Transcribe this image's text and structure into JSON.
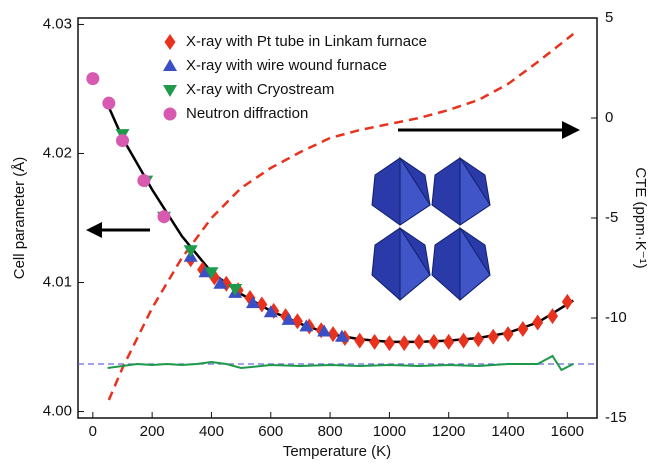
{
  "chart_data": {
    "type": "scatter",
    "xlabel": "Temperature (K)",
    "ylabel": "Cell parameter (Å)",
    "y2label": "CTE (ppm·K⁻¹)",
    "xlim": [
      -50,
      1700
    ],
    "xticks": [
      0,
      200,
      400,
      600,
      800,
      1000,
      1200,
      1400,
      1600
    ],
    "ylim": [
      3.9995,
      4.0305
    ],
    "yticks": [
      {
        "value": 4.0,
        "label": "4.00"
      },
      {
        "value": 4.01,
        "label": "4.01"
      },
      {
        "value": 4.02,
        "label": "4.02"
      },
      {
        "value": 4.03,
        "label": "4.03"
      }
    ],
    "y2lim": [
      -15,
      5
    ],
    "y2ticks": [
      5,
      0,
      -5,
      -10,
      -15
    ],
    "series": [
      {
        "name": "X-ray with Pt tube in Linkam furnace",
        "color": "#e8321e",
        "marker": "diamond",
        "x": [
          330,
          370,
          410,
          450,
          490,
          530,
          570,
          610,
          650,
          690,
          730,
          770,
          810,
          850,
          900,
          950,
          1000,
          1050,
          1100,
          1150,
          1200,
          1250,
          1300,
          1350,
          1400,
          1450,
          1500,
          1550,
          1600
        ],
        "values": [
          4.0118,
          4.011,
          4.0104,
          4.0099,
          4.0094,
          4.0088,
          4.0083,
          4.0078,
          4.0074,
          4.007,
          4.0066,
          4.0063,
          4.006,
          4.0057,
          4.0055,
          4.0054,
          4.0053,
          4.0053,
          4.0054,
          4.0054,
          4.0054,
          4.0055,
          4.0056,
          4.0058,
          4.006,
          4.0064,
          4.0069,
          4.0074,
          4.0085
        ]
      },
      {
        "name": "X-ray with wire wound furnace",
        "color": "#3a4fc4",
        "marker": "triangle-up",
        "x": [
          330,
          380,
          430,
          480,
          540,
          600,
          660,
          720,
          780,
          840
        ],
        "values": [
          4.012,
          4.0108,
          4.0099,
          4.0092,
          4.0084,
          4.0077,
          4.0071,
          4.0066,
          4.0062,
          4.0058
        ]
      },
      {
        "name": "X-ray with Cryostream",
        "color": "#1e9a4a",
        "marker": "triangle-down",
        "x": [
          100,
          180,
          240,
          330,
          400,
          480
        ],
        "values": [
          4.0215,
          4.0179,
          4.0151,
          4.0125,
          4.0108,
          4.0095
        ]
      },
      {
        "name": "Neutron diffraction",
        "color": "#d85ab0",
        "marker": "circle",
        "x": [
          0,
          54,
          100,
          172,
          240
        ],
        "values": [
          4.0258,
          4.0239,
          4.021,
          4.0179,
          4.0151
        ]
      }
    ],
    "fit": {
      "color": "#000000",
      "x": [
        50,
        100,
        200,
        300,
        400,
        500,
        600,
        700,
        800,
        900,
        1000,
        1100,
        1200,
        1300,
        1400,
        1500,
        1620
      ],
      "values": [
        4.0238,
        4.0212,
        4.0172,
        4.0136,
        4.0108,
        4.0091,
        4.0078,
        4.0068,
        4.006,
        4.0056,
        4.0054,
        4.0054,
        4.0055,
        4.0057,
        4.0061,
        4.0069,
        4.0086
      ]
    },
    "cte": {
      "color": "#e8321e",
      "axis": "y2",
      "x": [
        54,
        100,
        200,
        300,
        400,
        500,
        600,
        700,
        800,
        900,
        1000,
        1100,
        1200,
        1300,
        1400,
        1500,
        1620
      ],
      "values": [
        -14.1,
        -12.5,
        -9.5,
        -7,
        -5,
        -3.5,
        -2.5,
        -1.7,
        -1,
        -0.6,
        -0.3,
        0,
        0.4,
        0.9,
        1.7,
        2.8,
        4.2
      ]
    },
    "residual": {
      "color": "#1e9a4a",
      "axis": "y2",
      "x": [
        50,
        100,
        150,
        200,
        250,
        300,
        350,
        400,
        450,
        500,
        600,
        700,
        800,
        900,
        1000,
        1100,
        1200,
        1300,
        1400,
        1500,
        1550,
        1580,
        1620
      ],
      "values": [
        -12.5,
        -12.4,
        -12.3,
        -12.35,
        -12.3,
        -12.35,
        -12.3,
        -12.2,
        -12.3,
        -12.5,
        -12.35,
        -12.4,
        -12.35,
        -12.4,
        -12.35,
        -12.4,
        -12.35,
        -12.4,
        -12.3,
        -12.3,
        -11.9,
        -12.6,
        -12.3
      ]
    },
    "hline": {
      "value": -12.3,
      "axis": "y2",
      "color": "#6a6ae0"
    }
  }
}
